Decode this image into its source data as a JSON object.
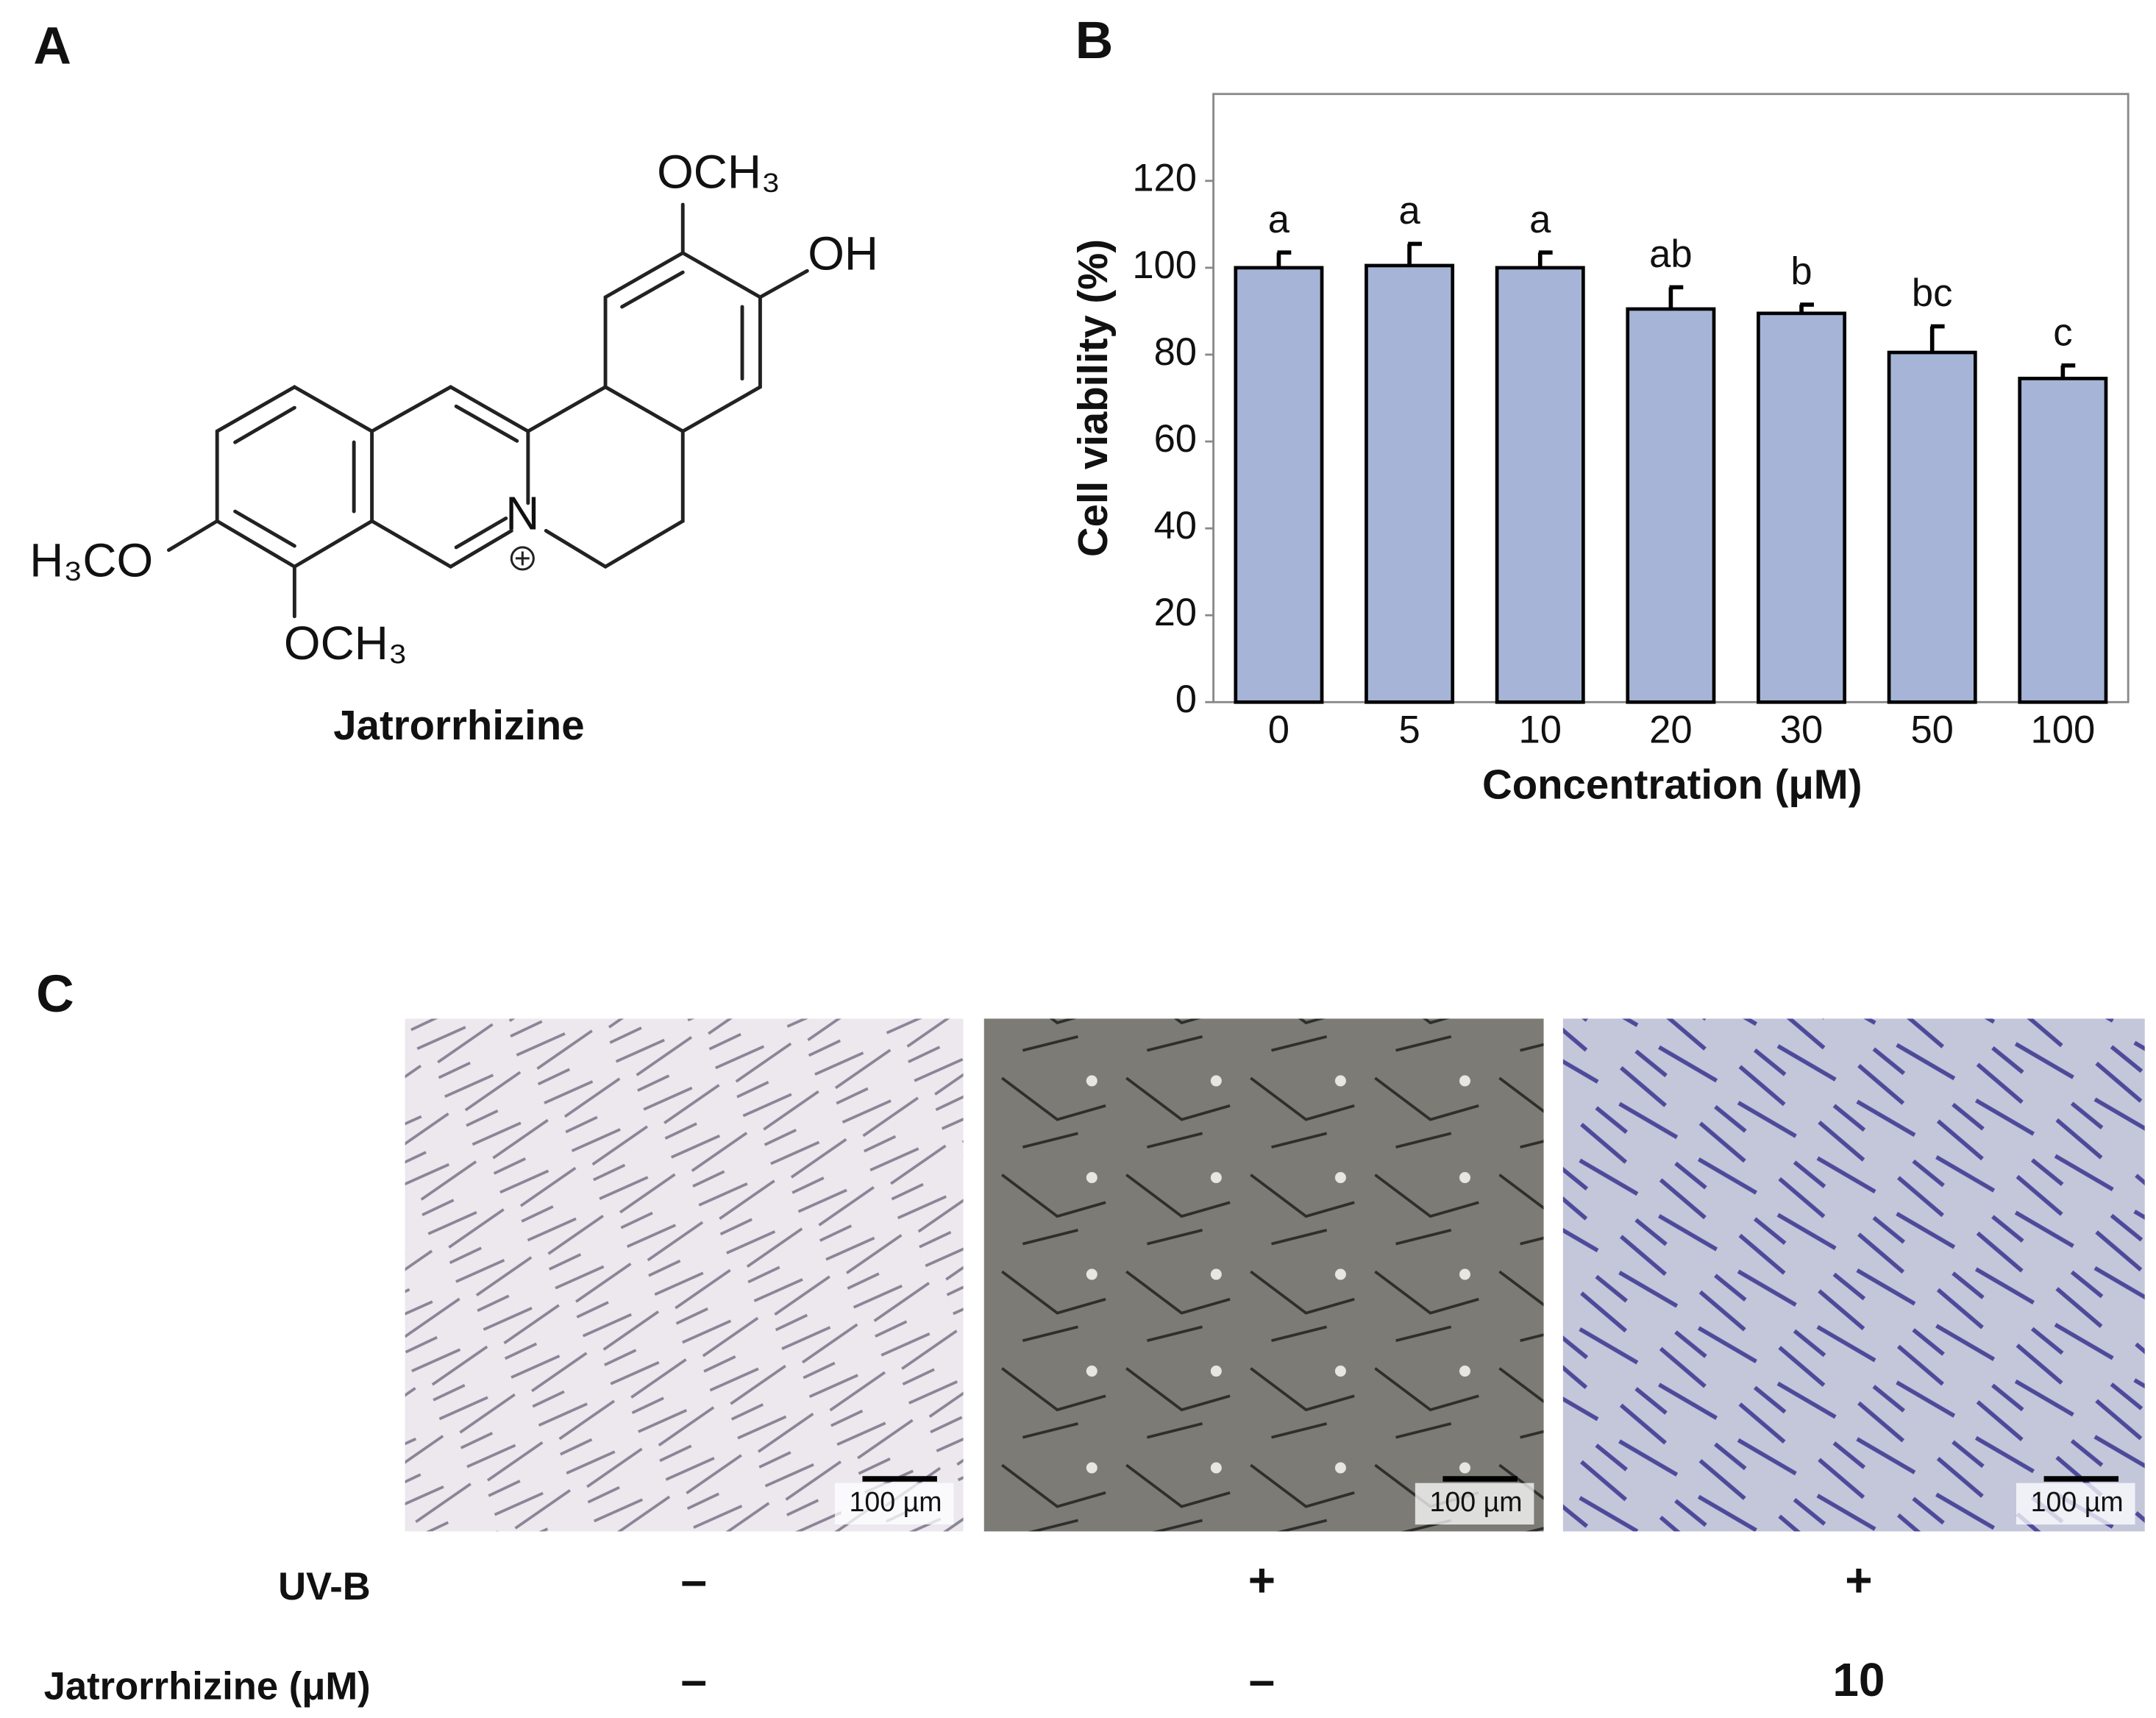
{
  "panel_labels": [
    "A",
    "B",
    "C"
  ],
  "structure": {
    "name": "Jatrorrhizine",
    "atoms": [
      "OCH₃",
      "OH",
      "H₃CO",
      "OCH₃",
      "N"
    ]
  },
  "chart_data": {
    "type": "bar",
    "x_label": "Concentration (μM)",
    "y_label": "Cell viability (%)",
    "categories": [
      "0",
      "5",
      "10",
      "20",
      "30",
      "50",
      "100"
    ],
    "values": [
      100,
      100.5,
      100,
      90.5,
      89.5,
      80.5,
      74.5
    ],
    "errors": [
      3.5,
      5,
      3.5,
      5,
      2,
      6,
      3
    ],
    "letters": [
      "a",
      "a",
      "a",
      "ab",
      "b",
      "bc",
      "c"
    ],
    "color": "#a6b5d7",
    "ylim": [
      0,
      140
    ],
    "yticks": [
      0,
      20,
      40,
      60,
      80,
      100,
      120
    ]
  },
  "micrographs": {
    "scale_bars": [
      "100 µm",
      "100 µm",
      "100 µm"
    ]
  },
  "conditions": {
    "rows": [
      {
        "label": "UV-B",
        "values": [
          "–",
          "+",
          "+"
        ]
      },
      {
        "label": "Jatrorrhizine (μM)",
        "values": [
          "–",
          "–",
          "10"
        ]
      }
    ]
  }
}
